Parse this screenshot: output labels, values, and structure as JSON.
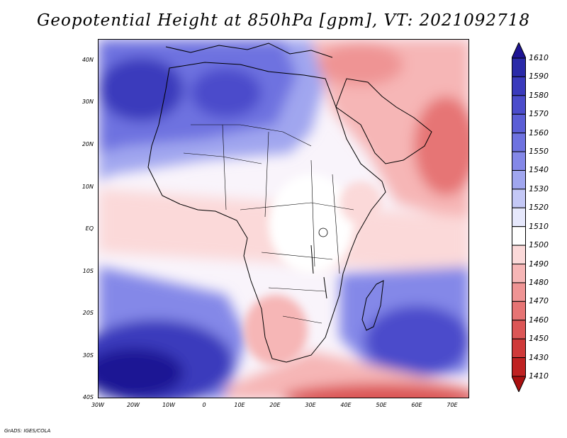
{
  "title": "Geopotential Height at 850hPa [gpm], VT: 2021092718",
  "credit": "GrADS: IGES/COLA",
  "latitude_labels": [
    "40N",
    "30N",
    "20N",
    "10N",
    "EQ",
    "10S",
    "20S",
    "30S",
    "40S"
  ],
  "longitude_labels": [
    "30W",
    "20W",
    "10W",
    "0",
    "10E",
    "20E",
    "30E",
    "40E",
    "50E",
    "60E",
    "70E"
  ],
  "colorbar": {
    "levels": [
      "1610",
      "1590",
      "1580",
      "1570",
      "1560",
      "1550",
      "1540",
      "1530",
      "1520",
      "1510",
      "1500",
      "1490",
      "1480",
      "1470",
      "1460",
      "1450",
      "1430",
      "1410"
    ],
    "colors": [
      "#1e1494",
      "#2a2aa8",
      "#3a3abc",
      "#4b4ccb",
      "#5b5ed6",
      "#6e72e0",
      "#8488e8",
      "#a0a6ef",
      "#c4c8f6",
      "#e6e8fc",
      "#ffffff",
      "#fbd9d9",
      "#f6b6b6",
      "#ef9494",
      "#e67474",
      "#dc5656",
      "#cf3a3a",
      "#bf2222",
      "#aa1010"
    ]
  },
  "map": {
    "region": "Africa and surrounding oceans",
    "lon_range": [
      -30,
      75
    ],
    "lat_range": [
      -40,
      45
    ],
    "field": "Geopotential Height at 850hPa",
    "units": "gpm"
  }
}
